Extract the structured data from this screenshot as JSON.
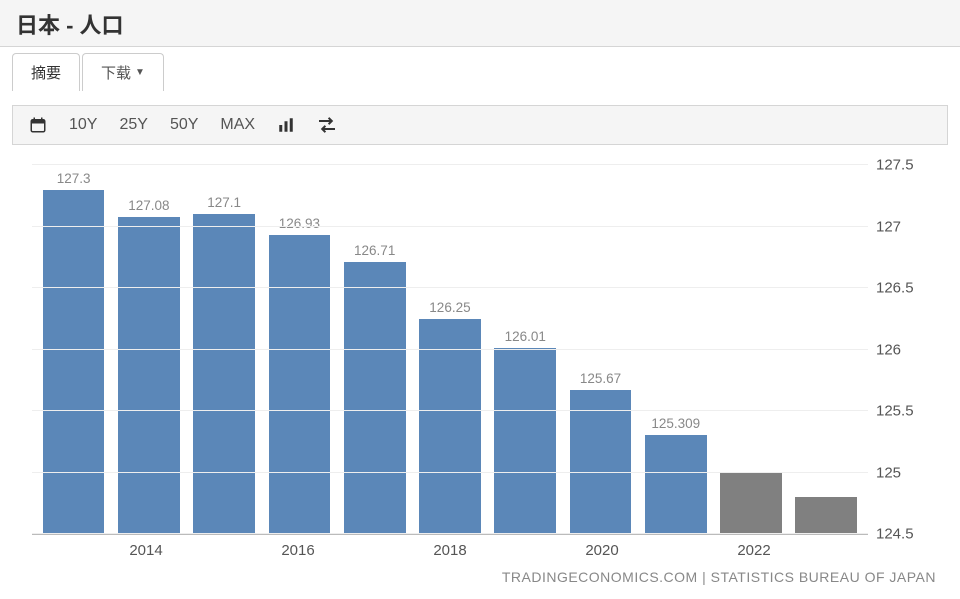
{
  "header": {
    "title": "日本 - 人口"
  },
  "tabs": {
    "summary": "摘要",
    "download": "下载"
  },
  "toolbar": {
    "ranges": [
      "10Y",
      "25Y",
      "50Y",
      "MAX"
    ]
  },
  "attribution": "TRADINGECONOMICS.COM | STATISTICS BUREAU OF JAPAN",
  "chart": {
    "type": "bar",
    "y_axis": {
      "min": 124.5,
      "max": 127.5,
      "ticks": [
        124.5,
        125,
        125.5,
        126,
        126.5,
        127,
        127.5
      ],
      "label_fontsize": 15,
      "label_color": "#555555"
    },
    "x_axis": {
      "tick_labels": [
        "2014",
        "2016",
        "2018",
        "2020",
        "2022"
      ],
      "tick_positions": [
        1,
        3,
        5,
        7,
        9
      ],
      "label_fontsize": 15,
      "label_color": "#555555"
    },
    "bars": [
      {
        "value": 127.3,
        "label": "127.3",
        "color": "#5b87b8",
        "show_label": true
      },
      {
        "value": 127.08,
        "label": "127.08",
        "color": "#5b87b8",
        "show_label": true
      },
      {
        "value": 127.1,
        "label": "127.1",
        "color": "#5b87b8",
        "show_label": true
      },
      {
        "value": 126.93,
        "label": "126.93",
        "color": "#5b87b8",
        "show_label": true
      },
      {
        "value": 126.71,
        "label": "126.71",
        "color": "#5b87b8",
        "show_label": true
      },
      {
        "value": 126.25,
        "label": "126.25",
        "color": "#5b87b8",
        "show_label": true
      },
      {
        "value": 126.01,
        "label": "126.01",
        "color": "#5b87b8",
        "show_label": true
      },
      {
        "value": 125.67,
        "label": "125.67",
        "color": "#5b87b8",
        "show_label": true
      },
      {
        "value": 125.309,
        "label": "125.309",
        "color": "#5b87b8",
        "show_label": true
      },
      {
        "value": 125.0,
        "label": "",
        "color": "#808080",
        "show_label": false
      },
      {
        "value": 124.8,
        "label": "",
        "color": "#808080",
        "show_label": false
      }
    ],
    "grid_color": "#eeeeee",
    "background_color": "#ffffff",
    "bar_label_color": "#888888",
    "bar_label_fontsize": 13.5
  }
}
